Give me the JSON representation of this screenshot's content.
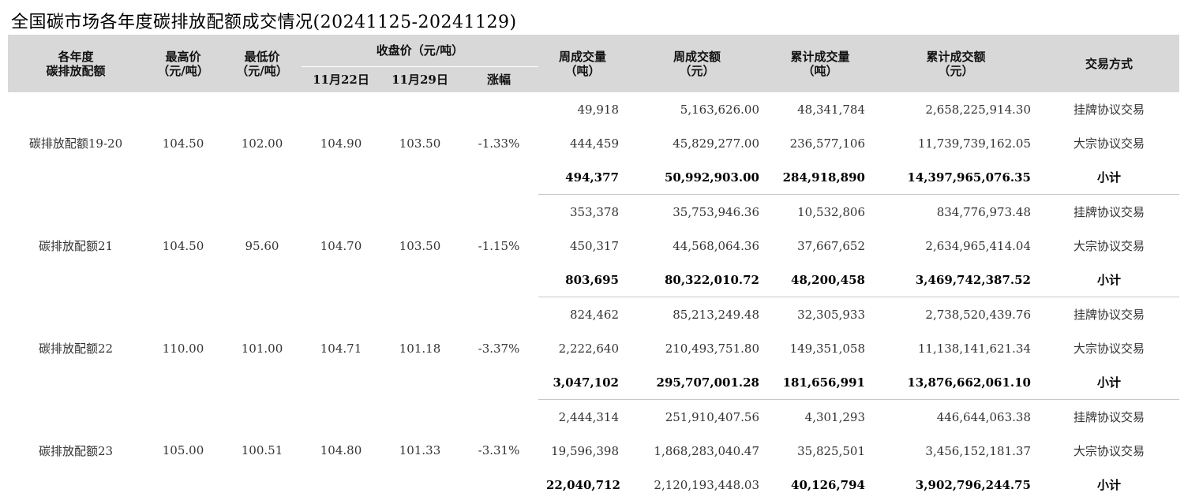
{
  "title": "全国碳市场各年度碳排放配额成交情况(20241125-20241129)",
  "header": {
    "year_quota_l1": "各年度",
    "year_quota_l2": "碳排放配额",
    "high_price_l1": "最高价",
    "high_price_l2": "（元/吨）",
    "low_price_l1": "最低价",
    "low_price_l2": "（元/吨）",
    "close_price": "收盘价（元/吨）",
    "date1": "11月22日",
    "date2": "11月29日",
    "change": "涨幅",
    "week_volume_l1": "周成交量",
    "week_volume_l2": "（吨）",
    "week_amount_l1": "周成交额",
    "week_amount_l2": "（元）",
    "cum_volume_l1": "累计成交量",
    "cum_volume_l2": "（吨）",
    "cum_amount_l1": "累计成交额",
    "cum_amount_l2": "（元）",
    "method": "交易方式"
  },
  "groups": [
    {
      "name": "碳排放配额19-20",
      "high": "104.50",
      "low": "102.00",
      "close_1122": "104.90",
      "close_1129": "103.50",
      "change": "-1.33%",
      "rows": [
        {
          "week_volume": "49,918",
          "week_amount": "5,163,626.00",
          "cum_volume": "48,341,784",
          "cum_amount": "2,658,225,914.30",
          "method": "挂牌协议交易"
        },
        {
          "week_volume": "444,459",
          "week_amount": "45,829,277.00",
          "cum_volume": "236,577,106",
          "cum_amount": "11,739,739,162.05",
          "method": "大宗协议交易"
        },
        {
          "week_volume": "494,377",
          "week_amount": "50,992,903.00",
          "cum_volume": "284,918,890",
          "cum_amount": "14,397,965,076.35",
          "method": "小计"
        }
      ]
    },
    {
      "name": "碳排放配额21",
      "high": "104.50",
      "low": "95.60",
      "close_1122": "104.70",
      "close_1129": "103.50",
      "change": "-1.15%",
      "rows": [
        {
          "week_volume": "353,378",
          "week_amount": "35,753,946.36",
          "cum_volume": "10,532,806",
          "cum_amount": "834,776,973.48",
          "method": "挂牌协议交易"
        },
        {
          "week_volume": "450,317",
          "week_amount": "44,568,064.36",
          "cum_volume": "37,667,652",
          "cum_amount": "2,634,965,414.04",
          "method": "大宗协议交易"
        },
        {
          "week_volume": "803,695",
          "week_amount": "80,322,010.72",
          "cum_volume": "48,200,458",
          "cum_amount": "3,469,742,387.52",
          "method": "小计"
        }
      ]
    },
    {
      "name": "碳排放配额22",
      "high": "110.00",
      "low": "101.00",
      "close_1122": "104.71",
      "close_1129": "101.18",
      "change": "-3.37%",
      "rows": [
        {
          "week_volume": "824,462",
          "week_amount": "85,213,249.48",
          "cum_volume": "32,305,933",
          "cum_amount": "2,738,520,439.76",
          "method": "挂牌协议交易"
        },
        {
          "week_volume": "2,222,640",
          "week_amount": "210,493,751.80",
          "cum_volume": "149,351,058",
          "cum_amount": "11,138,141,621.34",
          "method": "大宗协议交易"
        },
        {
          "week_volume": "3,047,102",
          "week_amount": "295,707,001.28",
          "cum_volume": "181,656,991",
          "cum_amount": "13,876,662,061.10",
          "method": "小计"
        }
      ]
    },
    {
      "name": "碳排放配额23",
      "high": "105.00",
      "low": "100.51",
      "close_1122": "104.80",
      "close_1129": "101.33",
      "change": "-3.31%",
      "rows": [
        {
          "week_volume": "2,444,314",
          "week_amount": "251,910,407.56",
          "cum_volume": "4,301,293",
          "cum_amount": "446,644,063.38",
          "method": "挂牌协议交易"
        },
        {
          "week_volume": "19,596,398",
          "week_amount": "1,868,283,040.47",
          "cum_volume": "35,825,501",
          "cum_amount": "3,456,152,181.37",
          "method": "大宗协议交易"
        },
        {
          "week_volume": "22,040,712",
          "week_amount": "2,120,193,448.03",
          "cum_volume": "40,126,794",
          "cum_amount": "3,902,796,244.75",
          "method": "小计"
        }
      ]
    }
  ]
}
